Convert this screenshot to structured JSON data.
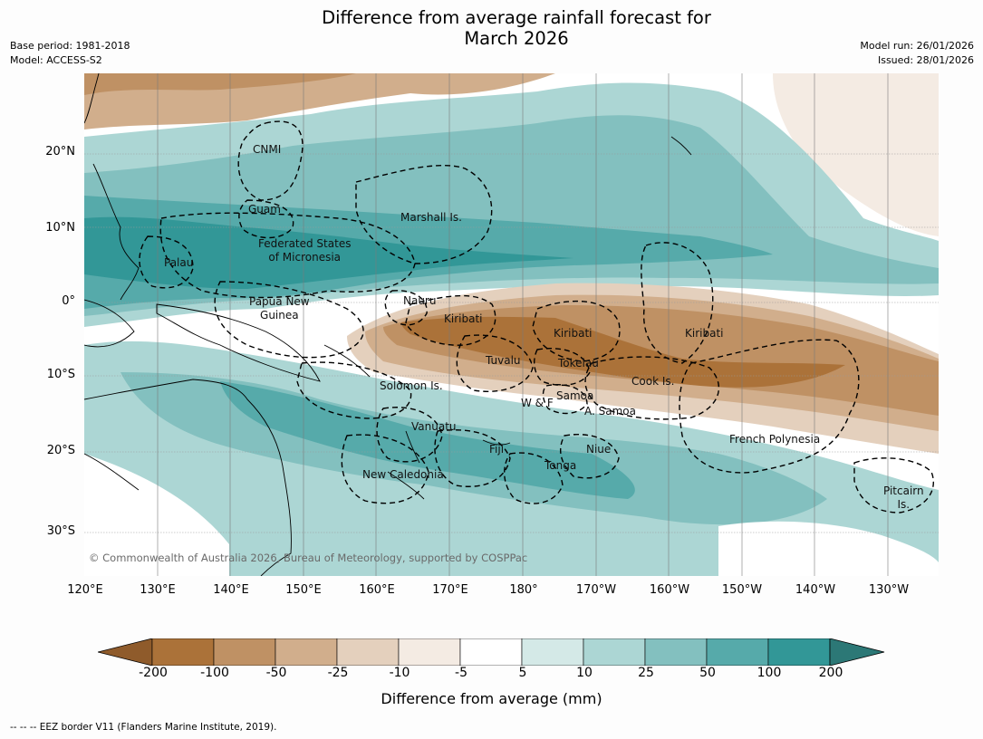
{
  "title_line1": "Difference from average rainfall forecast for",
  "title_line2": "March 2026",
  "base_period": "Base period: 1981-2018",
  "model": "Model: ACCESS-S2",
  "model_run": "Model run: 26/01/2026",
  "issued": "Issued: 28/01/2026",
  "lat_labels": [
    "20°N",
    "10°N",
    "0°",
    "10°S",
    "20°S",
    "30°S"
  ],
  "lon_labels": [
    "120°E",
    "130°E",
    "140°E",
    "150°E",
    "160°E",
    "170°E",
    "180°",
    "170°W",
    "160°W",
    "150°W",
    "140°W",
    "130°W"
  ],
  "regions": {
    "cnmi": "CNMI",
    "guam": "Guam",
    "marshall": "Marshall Is.",
    "fsm_1": "Federated States",
    "fsm_2": "of Micronesia",
    "palau": "Palau",
    "png_1": "Papua New",
    "png_2": "Guinea",
    "nauru": "Nauru",
    "kiribati_w": "Kiribati",
    "kiribati_c": "Kiribati",
    "kiribati_e": "Kiribati",
    "tuvalu": "Tuvalu",
    "tokelau": "Tokelau",
    "cook": "Cook Is.",
    "solomon": "Solomon Is.",
    "samoa": "Samoa",
    "wf": "W & F",
    "asamoa": "A. Samoa",
    "vanuatu": "Vanuatu",
    "fiji": "Fiji",
    "niue": "Niue",
    "tonga": "Tonga",
    "french_poly": "French Polynesia",
    "new_caledonia": "New Caledonia",
    "pitcairn_1": "Pitcairn",
    "pitcairn_2": "Is."
  },
  "copyright": "© Commonwealth of Australia 2026, Bureau of Meteorology, supported by COSPPac",
  "legend": {
    "ticks": [
      "-200",
      "-100",
      "-50",
      "-25",
      "-10",
      "-5",
      "5",
      "10",
      "25",
      "50",
      "100",
      "200"
    ],
    "colors": [
      "#8f5b2b",
      "#ab7239",
      "#bf9164",
      "#d1ae8c",
      "#e4d0bd",
      "#f4ebe3",
      "#ffffff",
      "#d4e9e7",
      "#acd6d4",
      "#83c0bf",
      "#56aaaa",
      "#329797",
      "#2c7876"
    ],
    "title": "Difference from average (mm)"
  },
  "footnote": "--  --  -- EEZ border V11 (Flanders Marine Institute, 2019)."
}
